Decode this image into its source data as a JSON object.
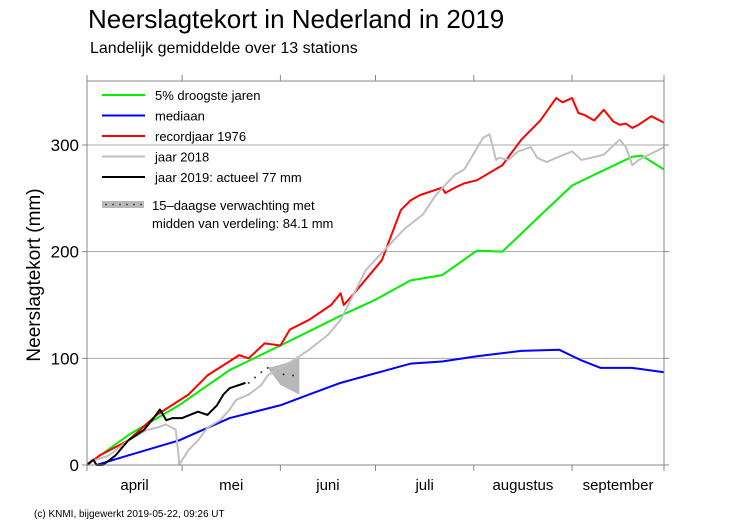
{
  "title": "Neerslagtekort in Nederland in 2019",
  "subtitle": "Landelijk gemiddelde over 13 stations",
  "footer": "(c) KNMI, bijgewerkt 2019-05-22, 09:26 UT",
  "chart_data": {
    "type": "line",
    "ylabel": "Neerslagtekort (mm)",
    "xlim": [
      "2019-04-01",
      "2019-09-30"
    ],
    "ylim": [
      0,
      360
    ],
    "yticks": [
      0,
      100,
      200,
      300
    ],
    "xtick_labels": [
      "april",
      "mei",
      "juni",
      "juli",
      "augustus",
      "september"
    ],
    "grid": "horizontal at 100, 200, 300",
    "legend_position": "top-left",
    "series": [
      {
        "name": "5% droogste jaren",
        "color": "#00ee00",
        "points": [
          [
            "04-01",
            0
          ],
          [
            "04-14",
            28
          ],
          [
            "04-30",
            56
          ],
          [
            "05-16",
            89
          ],
          [
            "06-01",
            112
          ],
          [
            "06-20",
            140
          ],
          [
            "07-01",
            155
          ],
          [
            "07-12",
            173
          ],
          [
            "07-22",
            178
          ],
          [
            "08-02",
            201
          ],
          [
            "08-10",
            200
          ],
          [
            "08-22",
            234
          ],
          [
            "09-01",
            262
          ],
          [
            "09-10",
            275
          ],
          [
            "09-20",
            289
          ],
          [
            "09-23",
            290
          ],
          [
            "09-30",
            277
          ]
        ]
      },
      {
        "name": "mediaan",
        "color": "#0000ff",
        "points": [
          [
            "04-04",
            0
          ],
          [
            "04-14",
            9
          ],
          [
            "04-30",
            23
          ],
          [
            "05-16",
            44
          ],
          [
            "06-01",
            56
          ],
          [
            "06-10",
            66
          ],
          [
            "06-20",
            77
          ],
          [
            "07-01",
            86
          ],
          [
            "07-12",
            95
          ],
          [
            "07-22",
            97
          ],
          [
            "08-02",
            102
          ],
          [
            "08-16",
            107
          ],
          [
            "08-28",
            108
          ],
          [
            "09-04",
            98
          ],
          [
            "09-10",
            91
          ],
          [
            "09-20",
            91
          ],
          [
            "09-30",
            87
          ]
        ]
      },
      {
        "name": "recordjaar 1976",
        "color": "#ff0000",
        "points": [
          [
            "04-01",
            0
          ],
          [
            "04-05",
            9
          ],
          [
            "04-14",
            23
          ],
          [
            "04-23",
            47
          ],
          [
            "05-03",
            66
          ],
          [
            "05-09",
            84
          ],
          [
            "05-19",
            103
          ],
          [
            "05-22",
            100
          ],
          [
            "05-27",
            114
          ],
          [
            "06-01",
            112
          ],
          [
            "06-04",
            127
          ],
          [
            "06-10",
            136
          ],
          [
            "06-17",
            150
          ],
          [
            "06-20",
            161
          ],
          [
            "06-21",
            150
          ],
          [
            "06-24",
            160
          ],
          [
            "07-03",
            192
          ],
          [
            "07-09",
            239
          ],
          [
            "07-12",
            248
          ],
          [
            "07-15",
            253
          ],
          [
            "07-22",
            260
          ],
          [
            "07-23",
            255
          ],
          [
            "07-26",
            260
          ],
          [
            "07-29",
            264
          ],
          [
            "08-02",
            267
          ],
          [
            "08-10",
            281
          ],
          [
            "08-16",
            305
          ],
          [
            "08-22",
            323
          ],
          [
            "08-27",
            344
          ],
          [
            "08-29",
            340
          ],
          [
            "09-01",
            344
          ],
          [
            "09-03",
            330
          ],
          [
            "09-05",
            328
          ],
          [
            "09-08",
            323
          ],
          [
            "09-11",
            333
          ],
          [
            "09-14",
            322
          ],
          [
            "09-16",
            319
          ],
          [
            "09-18",
            320
          ],
          [
            "09-20",
            316
          ],
          [
            "09-22",
            319
          ],
          [
            "09-26",
            327
          ],
          [
            "09-30",
            321
          ]
        ]
      },
      {
        "name": "jaar 2018",
        "color": "#c0c0c0",
        "points": [
          [
            "04-01",
            2
          ],
          [
            "04-08",
            9
          ],
          [
            "04-14",
            23
          ],
          [
            "04-20",
            33
          ],
          [
            "04-23",
            35
          ],
          [
            "04-26",
            38
          ],
          [
            "04-29",
            33
          ],
          [
            "04-30",
            5
          ],
          [
            "04-30",
            0
          ],
          [
            "05-03",
            14
          ],
          [
            "05-06",
            23
          ],
          [
            "05-09",
            35
          ],
          [
            "05-13",
            42
          ],
          [
            "05-16",
            52
          ],
          [
            "05-18",
            61
          ],
          [
            "05-22",
            66
          ],
          [
            "05-26",
            75
          ],
          [
            "05-28",
            84
          ],
          [
            "06-01",
            91
          ],
          [
            "06-05",
            98
          ],
          [
            "06-10",
            108
          ],
          [
            "06-16",
            122
          ],
          [
            "06-20",
            136
          ],
          [
            "06-28",
            183
          ],
          [
            "07-04",
            202
          ],
          [
            "07-10",
            221
          ],
          [
            "07-16",
            235
          ],
          [
            "07-20",
            253
          ],
          [
            "07-26",
            272
          ],
          [
            "07-29",
            277
          ],
          [
            "08-04",
            307
          ],
          [
            "08-06",
            310
          ],
          [
            "08-08",
            286
          ],
          [
            "08-09",
            288
          ],
          [
            "08-12",
            286
          ],
          [
            "08-15",
            294
          ],
          [
            "08-19",
            298
          ],
          [
            "08-21",
            288
          ],
          [
            "08-24",
            284
          ],
          [
            "08-27",
            288
          ],
          [
            "09-01",
            294
          ],
          [
            "09-04",
            286
          ],
          [
            "09-07",
            288
          ],
          [
            "09-11",
            291
          ],
          [
            "09-16",
            305
          ],
          [
            "09-18",
            298
          ],
          [
            "09-20",
            281
          ],
          [
            "09-22",
            286
          ],
          [
            "09-30",
            298
          ]
        ]
      },
      {
        "name": "jaar 2019: actueel 77 mm",
        "color": "#000000",
        "points": [
          [
            "04-01",
            0
          ],
          [
            "04-03",
            5
          ],
          [
            "04-04",
            0
          ],
          [
            "04-06",
            0
          ],
          [
            "04-10",
            9
          ],
          [
            "04-14",
            23
          ],
          [
            "04-19",
            33
          ],
          [
            "04-22",
            44
          ],
          [
            "04-24",
            52
          ],
          [
            "04-26",
            42
          ],
          [
            "04-28",
            44
          ],
          [
            "05-01",
            44
          ],
          [
            "05-06",
            50
          ],
          [
            "05-09",
            47
          ],
          [
            "05-12",
            56
          ],
          [
            "05-14",
            66
          ],
          [
            "05-16",
            72
          ],
          [
            "05-21",
            77
          ]
        ]
      }
    ],
    "forecast": {
      "label": "15–daagse verwachting met",
      "label2": "midden van verdeling: 84.1 mm",
      "median": [
        [
          "05-22",
          77
        ],
        [
          "05-24",
          82
        ],
        [
          "05-26",
          87
        ],
        [
          "05-28",
          91
        ],
        [
          "05-31",
          89
        ],
        [
          "06-02",
          85
        ],
        [
          "06-05",
          84
        ]
      ],
      "band_upper": [
        [
          "05-28",
          91
        ],
        [
          "06-01",
          94
        ],
        [
          "06-07",
          100
        ]
      ],
      "band_lower": [
        [
          "05-28",
          91
        ],
        [
          "06-01",
          75
        ],
        [
          "06-07",
          66
        ]
      ]
    }
  }
}
